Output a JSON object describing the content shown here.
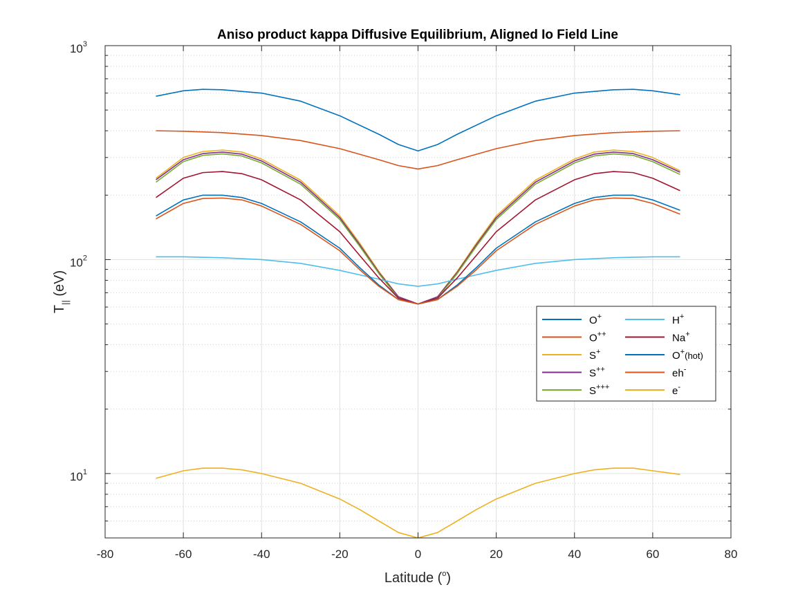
{
  "chart_data": {
    "type": "line",
    "title": "Aniso product kappa Diffusive Equilibrium, Aligned Io Field Line",
    "xlabel": "Latitude (",
    "xlabel_sup": "o",
    "xlabel_end": ")",
    "ylabel_main": "T",
    "ylabel_sub": "||",
    "ylabel_end": " (eV)",
    "xlim": [
      -80,
      80
    ],
    "ylim": [
      5,
      1000
    ],
    "yscale": "log",
    "grid": true,
    "legend_position": "right",
    "x_ticks": [
      "-80",
      "-60",
      "-40",
      "-20",
      "0",
      "20",
      "40",
      "60",
      "80"
    ],
    "y_ticks": [
      {
        "base": "10",
        "exp": "1"
      },
      {
        "base": "10",
        "exp": "2"
      },
      {
        "base": "10",
        "exp": "3"
      }
    ],
    "series": [
      {
        "name": "O",
        "sup": "+",
        "color": "#0072BD",
        "points": [
          [
            -67,
            580
          ],
          [
            -60,
            615
          ],
          [
            -55,
            625
          ],
          [
            -50,
            622
          ],
          [
            -40,
            600
          ],
          [
            -30,
            550
          ],
          [
            -20,
            470
          ],
          [
            -10,
            385
          ],
          [
            -5,
            345
          ],
          [
            0,
            322
          ],
          [
            5,
            345
          ],
          [
            10,
            385
          ],
          [
            20,
            470
          ],
          [
            30,
            550
          ],
          [
            40,
            600
          ],
          [
            50,
            622
          ],
          [
            55,
            625
          ],
          [
            60,
            615
          ],
          [
            67,
            590
          ]
        ]
      },
      {
        "name": "O",
        "sup": "++",
        "color": "#D95319",
        "points": [
          [
            -67,
            400
          ],
          [
            -60,
            398
          ],
          [
            -50,
            392
          ],
          [
            -40,
            380
          ],
          [
            -30,
            360
          ],
          [
            -20,
            330
          ],
          [
            -10,
            293
          ],
          [
            -5,
            275
          ],
          [
            0,
            265
          ],
          [
            5,
            275
          ],
          [
            10,
            293
          ],
          [
            20,
            330
          ],
          [
            30,
            360
          ],
          [
            40,
            380
          ],
          [
            50,
            392
          ],
          [
            60,
            398
          ],
          [
            67,
            400
          ]
        ]
      },
      {
        "name": "S",
        "sup": "+",
        "color": "#EDB120",
        "points": [
          [
            -67,
            240
          ],
          [
            -60,
            300
          ],
          [
            -55,
            320
          ],
          [
            -50,
            325
          ],
          [
            -45,
            318
          ],
          [
            -40,
            295
          ],
          [
            -30,
            235
          ],
          [
            -20,
            160
          ],
          [
            -15,
            120
          ],
          [
            -10,
            88
          ],
          [
            -5,
            67
          ],
          [
            0,
            62
          ],
          [
            5,
            67
          ],
          [
            10,
            88
          ],
          [
            15,
            120
          ],
          [
            20,
            160
          ],
          [
            30,
            235
          ],
          [
            40,
            295
          ],
          [
            45,
            318
          ],
          [
            50,
            325
          ],
          [
            55,
            320
          ],
          [
            60,
            300
          ],
          [
            67,
            260
          ]
        ]
      },
      {
        "name": "S",
        "sup": "++",
        "color": "#7E2F8E",
        "points": [
          [
            -67,
            236
          ],
          [
            -60,
            293
          ],
          [
            -55,
            313
          ],
          [
            -50,
            318
          ],
          [
            -45,
            311
          ],
          [
            -40,
            289
          ],
          [
            -30,
            230
          ],
          [
            -20,
            157
          ],
          [
            -15,
            118
          ],
          [
            -10,
            87
          ],
          [
            -5,
            67
          ],
          [
            0,
            62
          ],
          [
            5,
            67
          ],
          [
            10,
            87
          ],
          [
            15,
            118
          ],
          [
            20,
            157
          ],
          [
            30,
            230
          ],
          [
            40,
            289
          ],
          [
            45,
            311
          ],
          [
            50,
            318
          ],
          [
            55,
            313
          ],
          [
            60,
            293
          ],
          [
            67,
            256
          ]
        ]
      },
      {
        "name": "S",
        "sup": "+++",
        "color": "#77AC30",
        "points": [
          [
            -67,
            230
          ],
          [
            -60,
            287
          ],
          [
            -55,
            307
          ],
          [
            -50,
            312
          ],
          [
            -45,
            305
          ],
          [
            -40,
            283
          ],
          [
            -30,
            225
          ],
          [
            -20,
            154
          ],
          [
            -15,
            116
          ],
          [
            -10,
            86
          ],
          [
            -5,
            66
          ],
          [
            0,
            62
          ],
          [
            5,
            66
          ],
          [
            10,
            86
          ],
          [
            15,
            116
          ],
          [
            20,
            154
          ],
          [
            30,
            225
          ],
          [
            40,
            283
          ],
          [
            45,
            305
          ],
          [
            50,
            312
          ],
          [
            55,
            307
          ],
          [
            60,
            287
          ],
          [
            67,
            250
          ]
        ]
      },
      {
        "name": "H",
        "sup": "+",
        "color": "#4DBEEE",
        "points": [
          [
            -67,
            103
          ],
          [
            -60,
            103
          ],
          [
            -50,
            102
          ],
          [
            -40,
            100
          ],
          [
            -30,
            96
          ],
          [
            -20,
            89
          ],
          [
            -10,
            81
          ],
          [
            -5,
            77
          ],
          [
            0,
            75
          ],
          [
            5,
            77
          ],
          [
            10,
            81
          ],
          [
            20,
            89
          ],
          [
            30,
            96
          ],
          [
            40,
            100
          ],
          [
            50,
            102
          ],
          [
            60,
            103
          ],
          [
            67,
            103
          ]
        ]
      },
      {
        "name": "Na",
        "sup": "+",
        "color": "#A2142F",
        "points": [
          [
            -67,
            195
          ],
          [
            -60,
            240
          ],
          [
            -55,
            255
          ],
          [
            -50,
            258
          ],
          [
            -45,
            252
          ],
          [
            -40,
            236
          ],
          [
            -30,
            190
          ],
          [
            -20,
            135
          ],
          [
            -15,
            105
          ],
          [
            -10,
            82
          ],
          [
            -5,
            66
          ],
          [
            0,
            62
          ],
          [
            5,
            66
          ],
          [
            10,
            82
          ],
          [
            15,
            105
          ],
          [
            20,
            135
          ],
          [
            30,
            190
          ],
          [
            40,
            236
          ],
          [
            45,
            252
          ],
          [
            50,
            258
          ],
          [
            55,
            255
          ],
          [
            60,
            240
          ],
          [
            67,
            210
          ]
        ]
      },
      {
        "name": "O",
        "sup": "+",
        "tail": "(hot)",
        "color": "#0072BD",
        "points": [
          [
            -67,
            160
          ],
          [
            -60,
            190
          ],
          [
            -55,
            200
          ],
          [
            -50,
            200
          ],
          [
            -45,
            195
          ],
          [
            -40,
            183
          ],
          [
            -30,
            150
          ],
          [
            -20,
            113
          ],
          [
            -15,
            92
          ],
          [
            -10,
            76
          ],
          [
            -5,
            65
          ],
          [
            0,
            62
          ],
          [
            5,
            65
          ],
          [
            10,
            76
          ],
          [
            15,
            92
          ],
          [
            20,
            113
          ],
          [
            30,
            150
          ],
          [
            40,
            183
          ],
          [
            45,
            195
          ],
          [
            50,
            200
          ],
          [
            55,
            200
          ],
          [
            60,
            190
          ],
          [
            67,
            170
          ]
        ]
      },
      {
        "name": "eh",
        "sup": "-",
        "color": "#D95319",
        "points": [
          [
            -67,
            155
          ],
          [
            -60,
            183
          ],
          [
            -55,
            193
          ],
          [
            -50,
            194
          ],
          [
            -45,
            190
          ],
          [
            -40,
            178
          ],
          [
            -30,
            146
          ],
          [
            -20,
            110
          ],
          [
            -15,
            90
          ],
          [
            -10,
            75
          ],
          [
            -5,
            65
          ],
          [
            0,
            62
          ],
          [
            5,
            65
          ],
          [
            10,
            75
          ],
          [
            15,
            90
          ],
          [
            20,
            110
          ],
          [
            30,
            146
          ],
          [
            40,
            178
          ],
          [
            45,
            190
          ],
          [
            50,
            194
          ],
          [
            55,
            193
          ],
          [
            60,
            183
          ],
          [
            67,
            163
          ]
        ]
      },
      {
        "name": "e",
        "sup": "-",
        "color": "#EDB120",
        "points": [
          [
            -67,
            9.5
          ],
          [
            -60,
            10.3
          ],
          [
            -55,
            10.6
          ],
          [
            -50,
            10.6
          ],
          [
            -45,
            10.4
          ],
          [
            -40,
            10.0
          ],
          [
            -30,
            9.0
          ],
          [
            -20,
            7.6
          ],
          [
            -15,
            6.8
          ],
          [
            -10,
            6.0
          ],
          [
            -5,
            5.3
          ],
          [
            0,
            5.0
          ],
          [
            5,
            5.3
          ],
          [
            10,
            6.0
          ],
          [
            15,
            6.8
          ],
          [
            20,
            7.6
          ],
          [
            30,
            9.0
          ],
          [
            40,
            10.0
          ],
          [
            45,
            10.4
          ],
          [
            50,
            10.6
          ],
          [
            55,
            10.6
          ],
          [
            60,
            10.3
          ],
          [
            67,
            9.9
          ]
        ]
      }
    ]
  }
}
